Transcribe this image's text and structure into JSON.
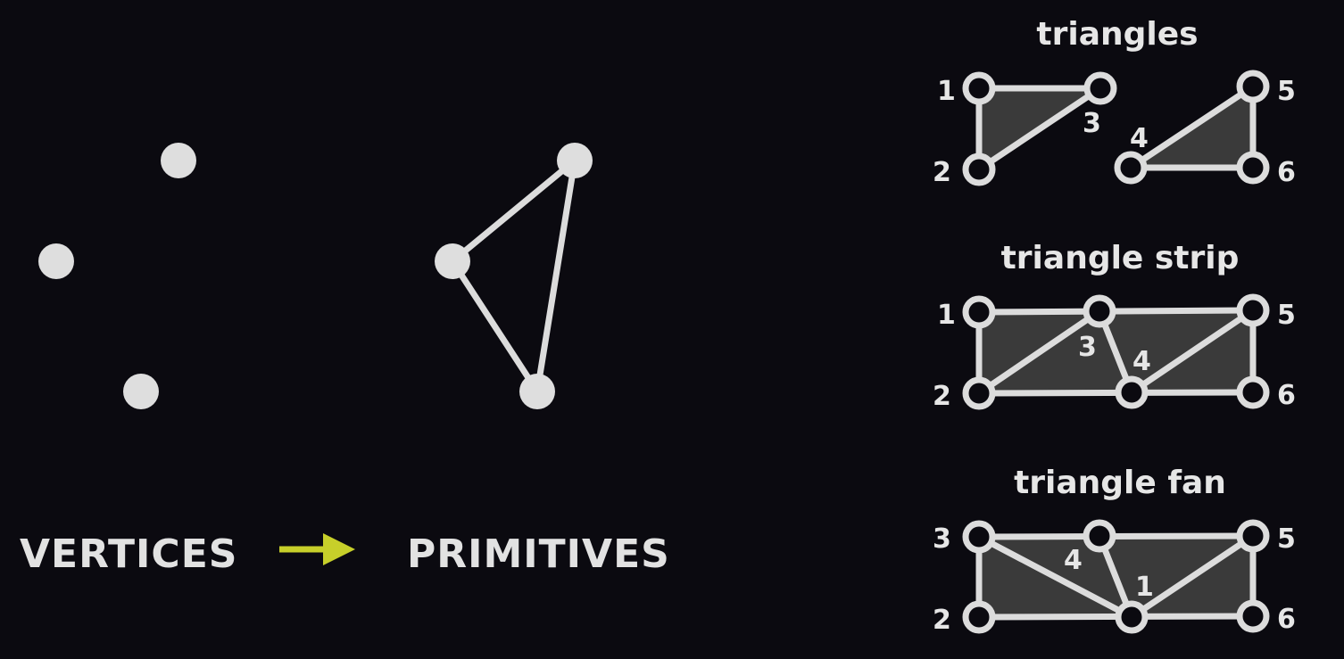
{
  "colors": {
    "background": "#0b0a10",
    "vertex": "#dedede",
    "edge": "#dcdcdc",
    "fill": "#3a3a3a",
    "arrow": "#c7cf2a",
    "text": "#e2e2e2"
  },
  "left": {
    "caption_vertices": "VERTICES",
    "caption_primitives": "PRIMITIVES",
    "arrow_icon": "right-arrow-icon"
  },
  "panels": {
    "triangles": {
      "title": "triangles",
      "labels": [
        "1",
        "2",
        "3",
        "4",
        "5",
        "6"
      ]
    },
    "strip": {
      "title": "triangle strip",
      "labels": [
        "1",
        "2",
        "3",
        "4",
        "5",
        "6"
      ]
    },
    "fan": {
      "title": "triangle fan",
      "labels": [
        "3",
        "2",
        "4",
        "1",
        "5",
        "6"
      ]
    }
  }
}
